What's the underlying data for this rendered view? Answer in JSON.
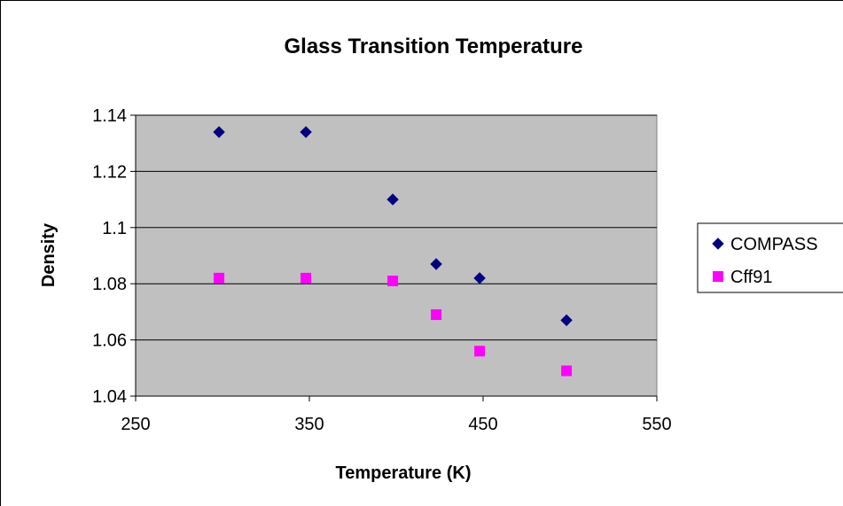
{
  "chart_data": {
    "type": "scatter",
    "title": "Glass Transition Temperature",
    "xlabel": "Temperature (K)",
    "ylabel": "Density",
    "xlim": [
      250,
      550
    ],
    "ylim": [
      1.04,
      1.14
    ],
    "xticks": [
      250,
      350,
      450,
      550
    ],
    "yticks": [
      1.04,
      1.06,
      1.08,
      1.1,
      1.12,
      1.14
    ],
    "xtick_labels": [
      "250",
      "350",
      "450",
      "550"
    ],
    "ytick_labels": [
      "1.04",
      "1.06",
      "1.08",
      "1.1",
      "1.12",
      "1.14"
    ],
    "grid": "horizontal",
    "legend_position": "right",
    "series": [
      {
        "name": "COMPASS",
        "marker": "diamond",
        "color": "#000080",
        "points": [
          {
            "x": 298,
            "y": 1.134
          },
          {
            "x": 348,
            "y": 1.134
          },
          {
            "x": 398,
            "y": 1.11
          },
          {
            "x": 423,
            "y": 1.087
          },
          {
            "x": 448,
            "y": 1.082
          },
          {
            "x": 498,
            "y": 1.067
          }
        ]
      },
      {
        "name": "Cff91",
        "marker": "square",
        "color": "#ff00ff",
        "points": [
          {
            "x": 298,
            "y": 1.082
          },
          {
            "x": 348,
            "y": 1.082
          },
          {
            "x": 398,
            "y": 1.081
          },
          {
            "x": 423,
            "y": 1.069
          },
          {
            "x": 448,
            "y": 1.056
          },
          {
            "x": 498,
            "y": 1.049
          }
        ]
      }
    ]
  }
}
